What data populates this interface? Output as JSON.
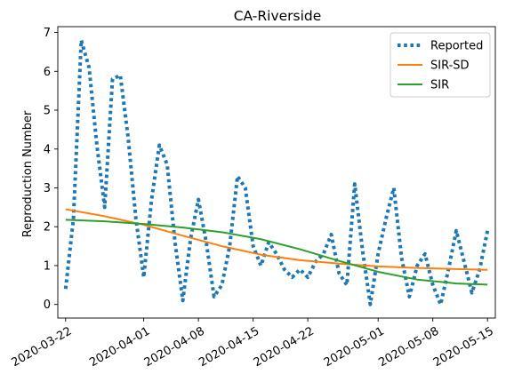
{
  "chart_data": {
    "type": "line",
    "title": "CA-Riverside",
    "xlabel": "",
    "ylabel": "Reproduction Number",
    "x_ticks": [
      "2020-03-22",
      "2020-04-01",
      "2020-04-08",
      "2020-04-15",
      "2020-04-22",
      "2020-05-01",
      "2020-05-08",
      "2020-05-15"
    ],
    "y_ticks": [
      "0",
      "1",
      "2",
      "3",
      "4",
      "5",
      "6",
      "7"
    ],
    "xlim": [
      "2020-03-21",
      "2020-05-16"
    ],
    "ylim": [
      -0.35,
      7.15
    ],
    "grid": false,
    "legend_position": "top-right",
    "series": [
      {
        "name": "Reported",
        "style": "dotted",
        "color": "#1f77b4",
        "points": [
          [
            "2020-03-22",
            0.4
          ],
          [
            "2020-03-23",
            2.2
          ],
          [
            "2020-03-24",
            6.8
          ],
          [
            "2020-03-25",
            6.1
          ],
          [
            "2020-03-26",
            4.1
          ],
          [
            "2020-03-27",
            2.5
          ],
          [
            "2020-03-28",
            5.8
          ],
          [
            "2020-03-29",
            5.9
          ],
          [
            "2020-03-30",
            4.3
          ],
          [
            "2020-03-31",
            2.2
          ],
          [
            "2020-04-01",
            0.7
          ],
          [
            "2020-04-02",
            2.7
          ],
          [
            "2020-04-03",
            4.1
          ],
          [
            "2020-04-04",
            3.6
          ],
          [
            "2020-04-05",
            1.6
          ],
          [
            "2020-04-06",
            0.1
          ],
          [
            "2020-04-07",
            1.7
          ],
          [
            "2020-04-08",
            2.7
          ],
          [
            "2020-04-09",
            1.6
          ],
          [
            "2020-04-10",
            0.2
          ],
          [
            "2020-04-11",
            0.5
          ],
          [
            "2020-04-12",
            1.5
          ],
          [
            "2020-04-13",
            3.3
          ],
          [
            "2020-04-14",
            3.0
          ],
          [
            "2020-04-15",
            1.5
          ],
          [
            "2020-04-16",
            1.0
          ],
          [
            "2020-04-17",
            1.6
          ],
          [
            "2020-04-18",
            1.3
          ],
          [
            "2020-04-19",
            0.9
          ],
          [
            "2020-04-20",
            0.7
          ],
          [
            "2020-04-21",
            0.9
          ],
          [
            "2020-04-22",
            0.7
          ],
          [
            "2020-04-23",
            1.1
          ],
          [
            "2020-04-24",
            1.3
          ],
          [
            "2020-04-25",
            1.8
          ],
          [
            "2020-04-26",
            0.8
          ],
          [
            "2020-04-27",
            0.5
          ],
          [
            "2020-04-28",
            3.1
          ],
          [
            "2020-04-29",
            1.4
          ],
          [
            "2020-04-30",
            0.0
          ],
          [
            "2020-05-01",
            1.3
          ],
          [
            "2020-05-02",
            2.2
          ],
          [
            "2020-05-03",
            3.0
          ],
          [
            "2020-05-04",
            1.2
          ],
          [
            "2020-05-05",
            0.2
          ],
          [
            "2020-05-06",
            1.0
          ],
          [
            "2020-05-07",
            1.3
          ],
          [
            "2020-05-08",
            0.5
          ],
          [
            "2020-05-09",
            0.0
          ],
          [
            "2020-05-10",
            0.9
          ],
          [
            "2020-05-11",
            1.9
          ],
          [
            "2020-05-12",
            1.1
          ],
          [
            "2020-05-13",
            0.3
          ],
          [
            "2020-05-14",
            0.9
          ],
          [
            "2020-05-15",
            1.9
          ]
        ]
      },
      {
        "name": "SIR-SD",
        "style": "solid",
        "color": "#ff7f0e",
        "points": [
          [
            "2020-03-22",
            2.45
          ],
          [
            "2020-03-27",
            2.27
          ],
          [
            "2020-04-01",
            2.05
          ],
          [
            "2020-04-06",
            1.77
          ],
          [
            "2020-04-11",
            1.5
          ],
          [
            "2020-04-16",
            1.28
          ],
          [
            "2020-04-21",
            1.14
          ],
          [
            "2020-04-26",
            1.05
          ],
          [
            "2020-05-01",
            0.98
          ],
          [
            "2020-05-06",
            0.94
          ],
          [
            "2020-05-11",
            0.91
          ],
          [
            "2020-05-15",
            0.89
          ]
        ]
      },
      {
        "name": "SIR",
        "style": "solid",
        "color": "#2ca02c",
        "points": [
          [
            "2020-03-22",
            2.18
          ],
          [
            "2020-03-27",
            2.14
          ],
          [
            "2020-04-01",
            2.07
          ],
          [
            "2020-04-06",
            1.98
          ],
          [
            "2020-04-11",
            1.86
          ],
          [
            "2020-04-16",
            1.68
          ],
          [
            "2020-04-21",
            1.42
          ],
          [
            "2020-04-26",
            1.12
          ],
          [
            "2020-05-01",
            0.84
          ],
          [
            "2020-05-06",
            0.64
          ],
          [
            "2020-05-11",
            0.54
          ],
          [
            "2020-05-15",
            0.51
          ]
        ]
      }
    ]
  }
}
